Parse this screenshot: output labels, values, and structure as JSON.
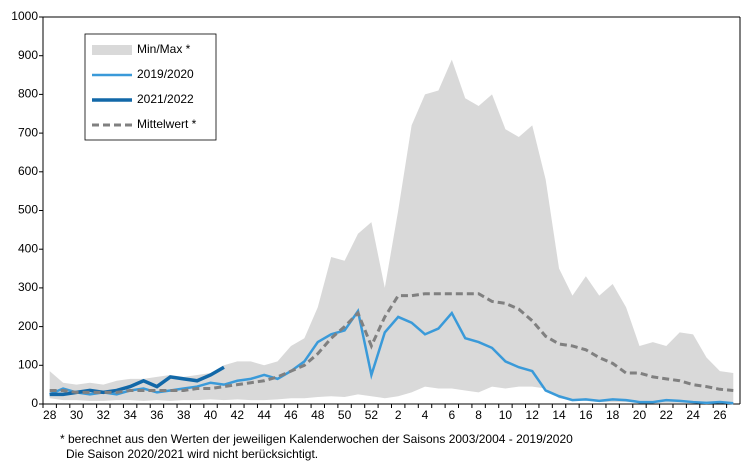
{
  "chart_data": {
    "type": "line",
    "categories": [
      "28",
      null,
      "30",
      null,
      "32",
      null,
      "34",
      null,
      "36",
      null,
      "38",
      null,
      "40",
      null,
      "42",
      null,
      "44",
      null,
      "46",
      null,
      "48",
      null,
      "50",
      null,
      "52",
      null,
      "2",
      null,
      "4",
      null,
      "6",
      null,
      "8",
      null,
      "10",
      null,
      "12",
      null,
      "14",
      null,
      "16",
      null,
      "18",
      null,
      "20",
      null,
      "22",
      null,
      "24",
      null,
      "26",
      null
    ],
    "band": {
      "name": "Min/Max *",
      "color": "#d9d9d9",
      "max": [
        85,
        55,
        50,
        55,
        50,
        60,
        65,
        65,
        70,
        75,
        70,
        75,
        80,
        100,
        110,
        110,
        100,
        110,
        150,
        170,
        250,
        380,
        370,
        440,
        470,
        300,
        500,
        720,
        800,
        810,
        890,
        790,
        770,
        800,
        710,
        690,
        720,
        580,
        350,
        280,
        330,
        280,
        310,
        250,
        150,
        160,
        150,
        185,
        180,
        120,
        85,
        80
      ],
      "min": [
        15,
        10,
        10,
        8,
        8,
        10,
        10,
        8,
        10,
        8,
        10,
        10,
        12,
        10,
        12,
        10,
        10,
        12,
        15,
        15,
        18,
        20,
        18,
        25,
        20,
        15,
        20,
        30,
        45,
        40,
        40,
        35,
        30,
        45,
        40,
        45,
        45,
        40,
        15,
        10,
        8,
        5,
        5,
        5,
        3,
        3,
        3,
        3,
        3,
        2,
        2,
        2
      ]
    },
    "series": [
      {
        "name": "2019/2020",
        "color": "#3a9ad9",
        "width": 2.5,
        "dash": false,
        "values": [
          25,
          40,
          30,
          25,
          30,
          25,
          35,
          40,
          30,
          35,
          40,
          45,
          55,
          50,
          60,
          65,
          75,
          65,
          85,
          110,
          160,
          180,
          190,
          240,
          75,
          185,
          225,
          210,
          180,
          195,
          235,
          170,
          160,
          145,
          110,
          95,
          85,
          35,
          20,
          10,
          12,
          8,
          12,
          10,
          5,
          5,
          10,
          8,
          5,
          3,
          5,
          2
        ]
      },
      {
        "name": "2021/2022",
        "color": "#1268a8",
        "width": 3.5,
        "dash": false,
        "values": [
          25,
          25,
          30,
          35,
          30,
          35,
          45,
          60,
          45,
          70,
          65,
          60,
          75,
          95,
          null,
          null,
          null,
          null,
          null,
          null,
          null,
          null,
          null,
          null,
          null,
          null,
          null,
          null,
          null,
          null,
          null,
          null,
          null,
          null,
          null,
          null,
          null,
          null,
          null,
          null,
          null,
          null,
          null,
          null,
          null,
          null,
          null,
          null,
          null,
          null,
          null,
          null
        ]
      },
      {
        "name": "Mittelwert *",
        "color": "#808080",
        "width": 3,
        "dash": true,
        "values": [
          35,
          35,
          30,
          30,
          30,
          30,
          35,
          35,
          35,
          35,
          35,
          40,
          40,
          45,
          50,
          55,
          60,
          70,
          85,
          100,
          130,
          170,
          200,
          235,
          150,
          225,
          280,
          280,
          285,
          285,
          285,
          285,
          285,
          265,
          260,
          245,
          215,
          175,
          155,
          150,
          140,
          120,
          105,
          80,
          80,
          70,
          65,
          60,
          50,
          45,
          38,
          35
        ]
      }
    ],
    "ylim": [
      0,
      1000
    ],
    "yticks": [
      0,
      100,
      200,
      300,
      400,
      500,
      600,
      700,
      800,
      900,
      1000
    ],
    "grid": false,
    "footnotes": [
      "* berechnet aus den Werten der jeweiligen Kalenderwochen  der Saisons 2003/2004 - 2019/2020",
      "Die Saison 2020/2021 wird nicht berücksichtigt."
    ]
  }
}
